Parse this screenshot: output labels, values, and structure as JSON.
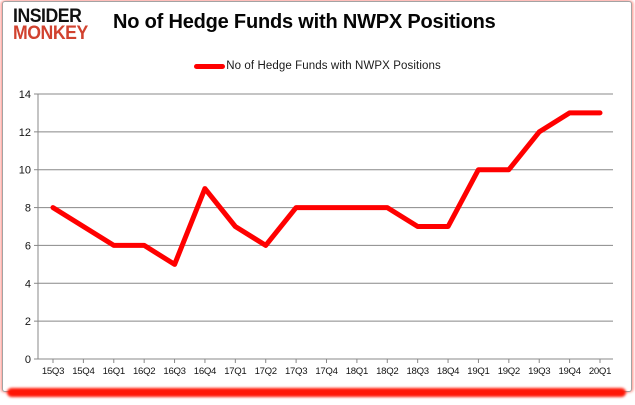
{
  "header": {
    "logo_line1": "INSIDER",
    "logo_line2": "MONKEY",
    "title": "No of Hedge Funds with NWPX Positions"
  },
  "legend": {
    "label": "No of Hedge Funds with NWPX Positions",
    "swatch_color": "#ff0000"
  },
  "chart_data": {
    "type": "line",
    "title": "No of Hedge Funds with NWPX Positions",
    "categories": [
      "15Q3",
      "15Q4",
      "16Q1",
      "16Q2",
      "16Q3",
      "16Q4",
      "17Q1",
      "17Q2",
      "17Q3",
      "17Q4",
      "18Q1",
      "18Q2",
      "18Q3",
      "18Q4",
      "19Q1",
      "19Q2",
      "19Q3",
      "19Q4",
      "20Q1"
    ],
    "series": [
      {
        "name": "No of Hedge Funds with NWPX Positions",
        "color": "#ff0000",
        "values": [
          8,
          7,
          6,
          6,
          5,
          9,
          7,
          6,
          8,
          8,
          8,
          8,
          7,
          7,
          10,
          10,
          12,
          13,
          13
        ]
      }
    ],
    "xlabel": "",
    "ylabel": "",
    "ylim": [
      0,
      14
    ],
    "ytick_step": 2,
    "yticks": [
      "0",
      "2",
      "4",
      "6",
      "8",
      "10",
      "12",
      "14"
    ],
    "grid": true,
    "legend_position": "top-center"
  },
  "colors": {
    "line_red": "#ff0000",
    "logo_red": "#d1422f",
    "gridline_gray": "#888888",
    "text_black": "#141414",
    "card_border": "#a3a3a3",
    "shadow_red": "#ff1605"
  }
}
